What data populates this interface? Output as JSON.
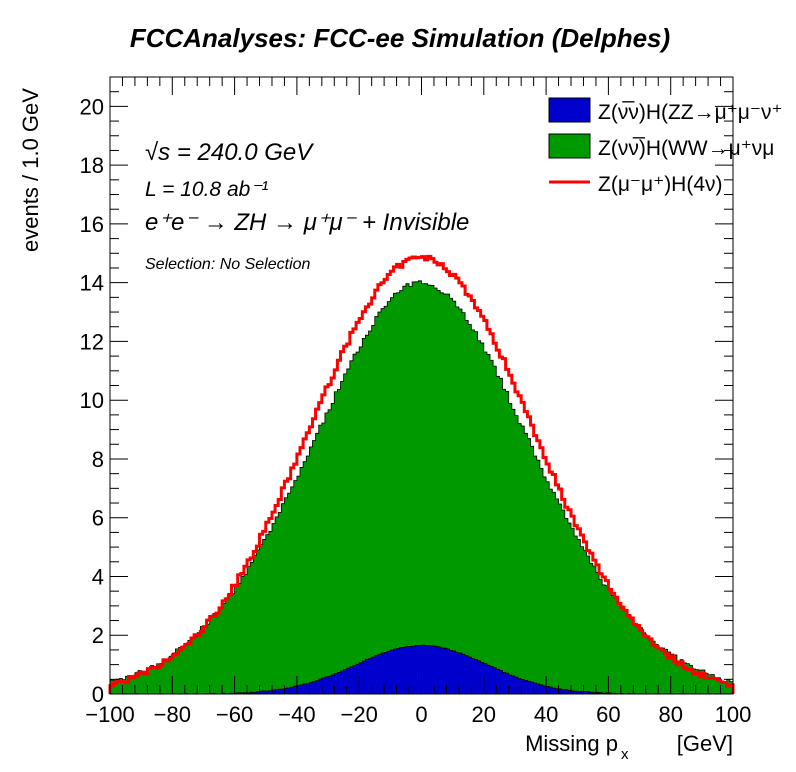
{
  "chart_data": {
    "type": "histogram",
    "title": "FCCAnalyses: FCC-ee Simulation (Delphes)",
    "xlabel": "Missing p",
    "xlabel_subscript": "x",
    "xlabel_unit": "[GeV]",
    "ylabel": "events / 1.0 GeV",
    "xlim": [
      -100,
      100
    ],
    "ylim": [
      0,
      21
    ],
    "x_ticks": [
      "−100",
      "−80",
      "−60",
      "−40",
      "−20",
      "0",
      "20",
      "40",
      "60",
      "80",
      "100"
    ],
    "y_ticks": [
      "0",
      "2",
      "4",
      "6",
      "8",
      "10",
      "12",
      "14",
      "16",
      "18",
      "20"
    ],
    "x_tick_values": [
      -100,
      -80,
      -60,
      -40,
      -20,
      0,
      20,
      40,
      60,
      80,
      100
    ],
    "y_tick_values": [
      0,
      2,
      4,
      6,
      8,
      10,
      12,
      14,
      16,
      18,
      20
    ],
    "bin_width": 1.0,
    "stack": {
      "zz_peak": 1.65,
      "zz_sigma": 21,
      "ww_peak": 12.35,
      "ww_sigma": 38,
      "signal_peak": 14.85,
      "signal_sigma": 36
    },
    "series": [
      {
        "name": "Z(ν̅ν)H(ZZ→μ⁺μ⁻ν⁺",
        "style": "filled",
        "color": "#0000cc"
      },
      {
        "name": "Z(νν̅)H(WW→μ⁺νμ",
        "style": "filled",
        "color": "#009900"
      },
      {
        "name": "Z(μ⁻μ⁺)H(4ν)",
        "style": "line",
        "color": "#ff0000"
      }
    ],
    "annotations": {
      "sqrt_s": "√s = 240.0 GeV",
      "lumi": "L = 10.8 ab⁻¹",
      "process": "e⁺e⁻ → ZH → μ⁺μ⁻ + Invisible",
      "selection": "Selection: No Selection"
    },
    "legend_position": "top-right"
  }
}
